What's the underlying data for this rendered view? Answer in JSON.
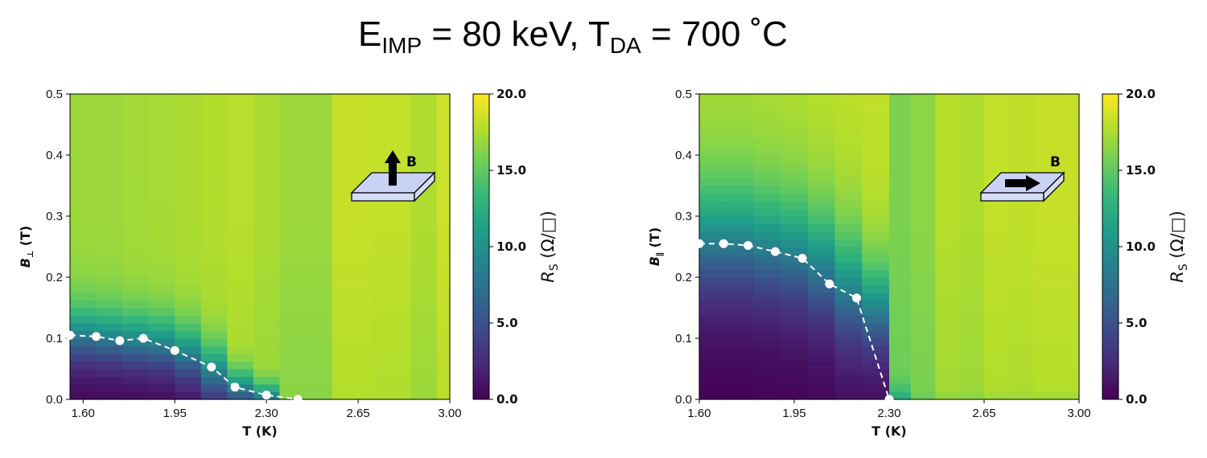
{
  "title": {
    "e_main": "E",
    "e_sub": "IMP",
    "e_rest": " = 80 keV, ",
    "t_main": "T",
    "t_sub": "DA",
    "t_rest": " = 700 ˚C"
  },
  "chart_data": [
    {
      "type": "heatmap",
      "panel": "left",
      "xlabel": "T (K)",
      "ylabel_main": "B",
      "ylabel_sub": "⊥",
      "ylabel_unit": " (T)",
      "xticks": [
        "1.60",
        "1.95",
        "2.30",
        "2.65",
        "3.00"
      ],
      "xtick_values": [
        1.6,
        1.95,
        2.3,
        2.65,
        3.0
      ],
      "yticks": [
        "0.0",
        "0.1",
        "0.2",
        "0.3",
        "0.4",
        "0.5"
      ],
      "xlim": [
        1.55,
        3.0
      ],
      "ylim": [
        0,
        0.5
      ],
      "colorbar": {
        "label_main": "R",
        "label_sub": "S",
        "label_unit": " (Ω/□)",
        "ticks": [
          "0.0",
          "5.0",
          "10.0",
          "15.0",
          "20.0"
        ],
        "range": [
          0,
          20
        ]
      },
      "columns": [
        {
          "t0": 1.55,
          "t1": 1.65,
          "bc": 0.105,
          "w": 0.06,
          "high": 17.0
        },
        {
          "t0": 1.65,
          "t1": 1.75,
          "bc": 0.1,
          "w": 0.06,
          "high": 17.0
        },
        {
          "t0": 1.75,
          "t1": 1.85,
          "bc": 0.095,
          "w": 0.06,
          "high": 17.2
        },
        {
          "t0": 1.85,
          "t1": 1.95,
          "bc": 0.09,
          "w": 0.06,
          "high": 17.3
        },
        {
          "t0": 1.95,
          "t1": 2.05,
          "bc": 0.075,
          "w": 0.06,
          "high": 17.5
        },
        {
          "t0": 2.05,
          "t1": 2.15,
          "bc": 0.045,
          "w": 0.06,
          "high": 17.7
        },
        {
          "t0": 2.15,
          "t1": 2.25,
          "bc": 0.02,
          "w": 0.04,
          "high": 17.9
        },
        {
          "t0": 2.25,
          "t1": 2.35,
          "bc": 0.005,
          "w": 0.03,
          "high": 17.5
        },
        {
          "t0": 2.35,
          "t1": 2.55,
          "bc": -0.05,
          "w": 0.03,
          "high": 17.0
        },
        {
          "t0": 2.55,
          "t1": 2.7,
          "bc": -0.05,
          "w": 0.03,
          "high": 18.3
        },
        {
          "t0": 2.7,
          "t1": 2.85,
          "bc": -0.05,
          "w": 0.03,
          "high": 18.2
        },
        {
          "t0": 2.85,
          "t1": 2.95,
          "bc": -0.05,
          "w": 0.03,
          "high": 17.6
        },
        {
          "t0": 2.95,
          "t1": 3.0,
          "bc": -0.05,
          "w": 0.03,
          "high": 18.5
        }
      ],
      "points": {
        "x": [
          1.55,
          1.65,
          1.74,
          1.83,
          1.95,
          2.09,
          2.18,
          2.3,
          2.42
        ],
        "y": [
          0.105,
          0.103,
          0.096,
          0.1,
          0.08,
          0.053,
          0.02,
          0.007,
          0.0
        ]
      },
      "inset": {
        "label": "B",
        "arrow": "up"
      }
    },
    {
      "type": "heatmap",
      "panel": "right",
      "xlabel": "T (K)",
      "ylabel_main": "B",
      "ylabel_sub": "∥",
      "ylabel_unit": " (T)",
      "xticks": [
        "1.60",
        "1.95",
        "2.30",
        "2.65",
        "3.00"
      ],
      "xtick_values": [
        1.6,
        1.95,
        2.3,
        2.65,
        3.0
      ],
      "yticks": [
        "0.0",
        "0.1",
        "0.2",
        "0.3",
        "0.4",
        "0.5"
      ],
      "xlim": [
        1.6,
        3.0
      ],
      "ylim": [
        0,
        0.5
      ],
      "colorbar": {
        "label_main": "R",
        "label_sub": "S",
        "label_unit": " (Ω/□)",
        "ticks": [
          "0.0",
          "5.0",
          "10.0",
          "15.0",
          "20.0"
        ],
        "range": [
          0,
          20
        ]
      },
      "columns": [
        {
          "t0": 1.6,
          "t1": 1.7,
          "bc": 0.26,
          "w": 0.12,
          "high": 17.5
        },
        {
          "t0": 1.7,
          "t1": 1.8,
          "bc": 0.26,
          "w": 0.12,
          "high": 17.5
        },
        {
          "t0": 1.8,
          "t1": 1.9,
          "bc": 0.25,
          "w": 0.12,
          "high": 17.6
        },
        {
          "t0": 1.9,
          "t1": 2.0,
          "bc": 0.24,
          "w": 0.12,
          "high": 17.7
        },
        {
          "t0": 2.0,
          "t1": 2.1,
          "bc": 0.22,
          "w": 0.12,
          "high": 17.9
        },
        {
          "t0": 2.1,
          "t1": 2.2,
          "bc": 0.18,
          "w": 0.12,
          "high": 18.0
        },
        {
          "t0": 2.2,
          "t1": 2.3,
          "bc": 0.15,
          "w": 0.1,
          "high": 18.1
        },
        {
          "t0": 2.3,
          "t1": 2.38,
          "bc": -0.02,
          "w": 0.04,
          "high": 16.0
        },
        {
          "t0": 2.38,
          "t1": 2.47,
          "bc": -0.05,
          "w": 0.04,
          "high": 16.5
        },
        {
          "t0": 2.47,
          "t1": 2.56,
          "bc": -0.05,
          "w": 0.04,
          "high": 17.8
        },
        {
          "t0": 2.56,
          "t1": 2.65,
          "bc": -0.05,
          "w": 0.04,
          "high": 17.6
        },
        {
          "t0": 2.65,
          "t1": 2.74,
          "bc": -0.05,
          "w": 0.04,
          "high": 18.2
        },
        {
          "t0": 2.74,
          "t1": 2.83,
          "bc": -0.05,
          "w": 0.04,
          "high": 18.1
        },
        {
          "t0": 2.83,
          "t1": 3.0,
          "bc": -0.05,
          "w": 0.04,
          "high": 18.3
        }
      ],
      "points": {
        "x": [
          1.6,
          1.69,
          1.78,
          1.88,
          1.98,
          2.08,
          2.18,
          2.3
        ],
        "y": [
          0.255,
          0.255,
          0.252,
          0.242,
          0.231,
          0.189,
          0.166,
          0.0
        ]
      },
      "inset": {
        "label": "B",
        "arrow": "right"
      }
    }
  ]
}
